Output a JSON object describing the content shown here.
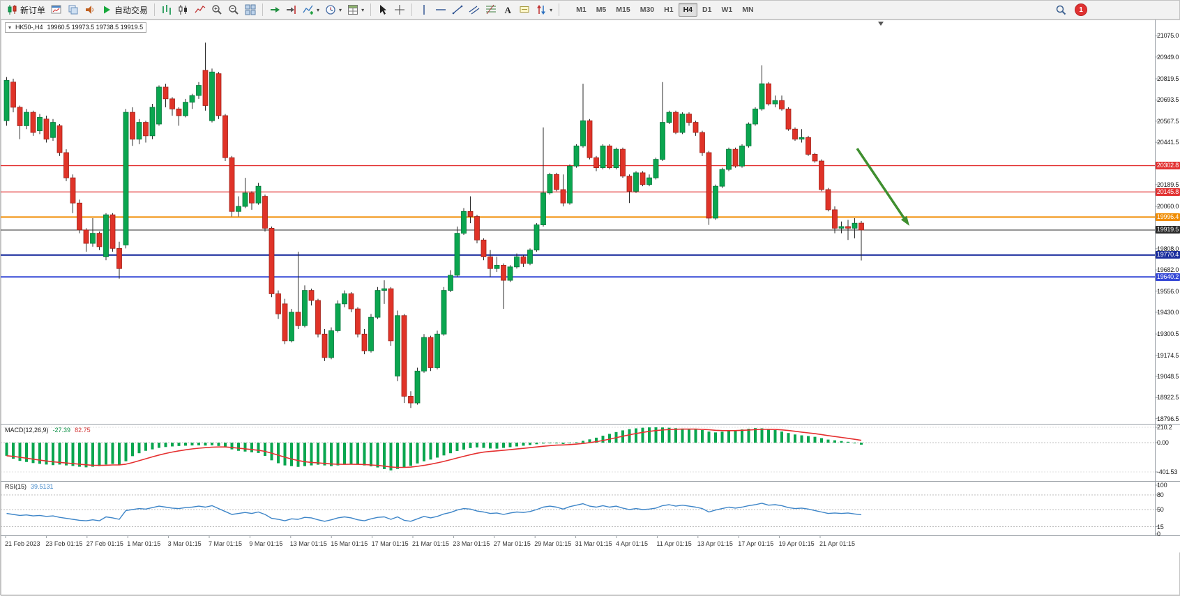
{
  "toolbar": {
    "groups": [
      {
        "name": "orders",
        "items": [
          {
            "name": "new-order-button",
            "icon": "new-order",
            "label": "新订单"
          },
          {
            "name": "new-chart-button",
            "icon": "new-chart"
          },
          {
            "name": "profiles-button",
            "icon": "profiles"
          },
          {
            "name": "alerts-button",
            "icon": "alerts"
          },
          {
            "name": "autotrading-button",
            "icon": "autotrading",
            "label": "自动交易"
          }
        ]
      },
      {
        "name": "chart-type",
        "items": [
          {
            "name": "bar-chart-button",
            "icon": "ohlc-bars"
          },
          {
            "name": "candlestick-chart-button",
            "icon": "candles"
          },
          {
            "name": "line-chart-button",
            "icon": "line-chart"
          },
          {
            "name": "zoom-in-button",
            "icon": "zoom-in"
          },
          {
            "name": "zoom-out-button",
            "icon": "zoom-out"
          },
          {
            "name": "tile-windows-button",
            "icon": "tile-windows"
          }
        ]
      },
      {
        "name": "chart-tools",
        "items": [
          {
            "name": "auto-scroll-button",
            "icon": "auto-scroll"
          },
          {
            "name": "chart-shift-button",
            "icon": "chart-shift"
          },
          {
            "name": "indicators-dropdown",
            "icon": "chart-plus",
            "caret": true
          },
          {
            "name": "periods-dropdown",
            "icon": "clock",
            "caret": true
          },
          {
            "name": "templates-dropdown",
            "icon": "templates",
            "caret": true
          }
        ]
      },
      {
        "name": "cursor-tools",
        "items": [
          {
            "name": "cursor-button",
            "icon": "cursor"
          },
          {
            "name": "crosshair-button",
            "icon": "crosshair"
          }
        ]
      },
      {
        "name": "draw-tools",
        "items": [
          {
            "name": "vertical-line-button",
            "icon": "vertical-line"
          },
          {
            "name": "horizontal-line-button",
            "icon": "horizontal-line"
          },
          {
            "name": "trendline-button",
            "icon": "trendline"
          },
          {
            "name": "channel-button",
            "icon": "channel"
          },
          {
            "name": "fibonacci-button",
            "icon": "fibonacci"
          },
          {
            "name": "text-button",
            "icon": "text"
          },
          {
            "name": "label-button",
            "icon": "label"
          },
          {
            "name": "shapes-dropdown",
            "icon": "shapes",
            "caret": true
          }
        ]
      }
    ],
    "timeframes": [
      {
        "name": "timeframe-m1",
        "label": "M1"
      },
      {
        "name": "timeframe-m5",
        "label": "M5"
      },
      {
        "name": "timeframe-m15",
        "label": "M15"
      },
      {
        "name": "timeframe-m30",
        "label": "M30"
      },
      {
        "name": "timeframe-h1",
        "label": "H1"
      },
      {
        "name": "timeframe-h4",
        "label": "H4",
        "active": true
      },
      {
        "name": "timeframe-d1",
        "label": "D1"
      },
      {
        "name": "timeframe-w1",
        "label": "W1"
      },
      {
        "name": "timeframe-mn",
        "label": "MN"
      }
    ],
    "right": {
      "search": "search",
      "notification_count": "1"
    }
  },
  "chart": {
    "quote": {
      "collapse_icon": "▾",
      "symbol_period": "HK50-,H4",
      "ohlc": "19960.5 19973.5 19738.5 19919.5"
    }
  },
  "chart_data": {
    "type": "candlestick",
    "symbol": "HK50-",
    "timeframe": "H4",
    "colors": {
      "up": "#0aa64f",
      "down": "#e03328",
      "wick": "#2b2b2b",
      "macd_hist": "#0aa64f",
      "macd_signal": "#e53030",
      "rsi": "#3d85c8",
      "arrow": "#3f8f2f"
    },
    "price_axis": {
      "ticks": [
        "21075.0",
        "20949.0",
        "20819.5",
        "20693.5",
        "20567.5",
        "20441.5",
        "20189.5",
        "20060.0",
        "19808.0",
        "19682.0",
        "19556.0",
        "19430.0",
        "19300.5",
        "19174.5",
        "19048.5",
        "18922.5",
        "18796.5"
      ]
    },
    "levels": [
      {
        "value": 20302.8,
        "label": "20302.8",
        "color": "#e23131",
        "line_width": 1.3
      },
      {
        "value": 20145.8,
        "label": "20145.8",
        "color": "#e23131",
        "line_width": 1.3
      },
      {
        "value": 19996.4,
        "label": "19996.4",
        "color": "#f08c00",
        "line_width": 2
      },
      {
        "value": 19919.5,
        "label": "19919.5",
        "color": "#2b2b2b",
        "line_width": 1
      },
      {
        "value": 19770.4,
        "label": "19770.4",
        "color": "#1c2f9e",
        "line_width": 2
      },
      {
        "value": 19640.2,
        "label": "19640.2",
        "color": "#3548d6",
        "line_width": 2
      }
    ],
    "arrow": {
      "from": [
        1228,
        212
      ],
      "to": [
        1303,
        323
      ]
    },
    "candles": [
      [
        20570,
        20830,
        20540,
        20810
      ],
      [
        20800,
        20820,
        20620,
        20650
      ],
      [
        20650,
        20660,
        20460,
        20540
      ],
      [
        20540,
        20640,
        20520,
        20620
      ],
      [
        20620,
        20630,
        20480,
        20500
      ],
      [
        20510,
        20610,
        20490,
        20590
      ],
      [
        20580,
        20600,
        20440,
        20460
      ],
      [
        20470,
        20580,
        20450,
        20560
      ],
      [
        20540,
        20550,
        20360,
        20380
      ],
      [
        20380,
        20400,
        20210,
        20230
      ],
      [
        20230,
        20250,
        20020,
        20080
      ],
      [
        20080,
        20100,
        19900,
        19920
      ],
      [
        19920,
        19930,
        19790,
        19840
      ],
      [
        19840,
        19990,
        19820,
        19900
      ],
      [
        19900,
        19910,
        19800,
        19820
      ],
      [
        19760,
        20020,
        19740,
        20010
      ],
      [
        20010,
        20020,
        19790,
        19810
      ],
      [
        19810,
        19850,
        19630,
        19690
      ],
      [
        19830,
        20640,
        19810,
        20620
      ],
      [
        20620,
        20650,
        20420,
        20460
      ],
      [
        20460,
        20580,
        20430,
        20560
      ],
      [
        20560,
        20570,
        20440,
        20480
      ],
      [
        20480,
        20670,
        20460,
        20650
      ],
      [
        20550,
        20780,
        20540,
        20770
      ],
      [
        20770,
        20790,
        20650,
        20700
      ],
      [
        20700,
        20710,
        20600,
        20640
      ],
      [
        20640,
        20650,
        20540,
        20600
      ],
      [
        20600,
        20700,
        20590,
        20680
      ],
      [
        20680,
        20730,
        20640,
        20720
      ],
      [
        20720,
        20800,
        20700,
        20780
      ],
      [
        20870,
        21035,
        20630,
        20660
      ],
      [
        20570,
        20880,
        20560,
        20860
      ],
      [
        20850,
        20860,
        20580,
        20600
      ],
      [
        20600,
        20610,
        20330,
        20350
      ],
      [
        20350,
        20360,
        20000,
        20030
      ],
      [
        20030,
        20120,
        20000,
        20060
      ],
      [
        20060,
        20230,
        20050,
        20140
      ],
      [
        20140,
        20150,
        20040,
        20080
      ],
      [
        20080,
        20200,
        20070,
        20180
      ],
      [
        20120,
        20130,
        19910,
        19930
      ],
      [
        19930,
        19940,
        19520,
        19540
      ],
      [
        19540,
        19560,
        19390,
        19420
      ],
      [
        19480,
        19510,
        19240,
        19260
      ],
      [
        19260,
        19450,
        19250,
        19430
      ],
      [
        19430,
        19790,
        19330,
        19350
      ],
      [
        19350,
        19590,
        19340,
        19560
      ],
      [
        19560,
        19570,
        19470,
        19500
      ],
      [
        19500,
        19510,
        19280,
        19300
      ],
      [
        19300,
        19330,
        19140,
        19160
      ],
      [
        19160,
        19340,
        19150,
        19320
      ],
      [
        19320,
        19500,
        19310,
        19480
      ],
      [
        19480,
        19560,
        19460,
        19540
      ],
      [
        19540,
        19550,
        19430,
        19450
      ],
      [
        19450,
        19460,
        19280,
        19300
      ],
      [
        19300,
        19330,
        19180,
        19200
      ],
      [
        19200,
        19420,
        19190,
        19400
      ],
      [
        19400,
        19580,
        19390,
        19560
      ],
      [
        19560,
        19620,
        19480,
        19570
      ],
      [
        19570,
        19580,
        19230,
        19260
      ],
      [
        19050,
        19440,
        19020,
        19410
      ],
      [
        19410,
        19420,
        18890,
        18930
      ],
      [
        18930,
        18960,
        18860,
        18890
      ],
      [
        18890,
        19100,
        18880,
        19080
      ],
      [
        19080,
        19300,
        19070,
        19280
      ],
      [
        19280,
        19290,
        19080,
        19100
      ],
      [
        19100,
        19320,
        19090,
        19300
      ],
      [
        19300,
        19580,
        19290,
        19560
      ],
      [
        19560,
        19680,
        19550,
        19650
      ],
      [
        19650,
        19940,
        19640,
        19900
      ],
      [
        19900,
        20050,
        19890,
        20030
      ],
      [
        20030,
        20120,
        19960,
        20000
      ],
      [
        20000,
        20010,
        19840,
        19860
      ],
      [
        19860,
        19870,
        19740,
        19760
      ],
      [
        19760,
        19800,
        19640,
        19690
      ],
      [
        19690,
        19760,
        19670,
        19710
      ],
      [
        19710,
        19720,
        19450,
        19620
      ],
      [
        19620,
        19710,
        19610,
        19700
      ],
      [
        19700,
        19780,
        19690,
        19760
      ],
      [
        19760,
        19770,
        19700,
        19720
      ],
      [
        19720,
        19810,
        19710,
        19800
      ],
      [
        19800,
        19960,
        19790,
        19950
      ],
      [
        19950,
        20530,
        19940,
        20140
      ],
      [
        20140,
        20260,
        20130,
        20250
      ],
      [
        20250,
        20260,
        20150,
        20160
      ],
      [
        20160,
        20250,
        20060,
        20080
      ],
      [
        20080,
        20310,
        20070,
        20300
      ],
      [
        20300,
        20430,
        20290,
        20420
      ],
      [
        20420,
        20790,
        20410,
        20570
      ],
      [
        20570,
        20580,
        20340,
        20350
      ],
      [
        20350,
        20360,
        20270,
        20290
      ],
      [
        20290,
        20430,
        20280,
        20420
      ],
      [
        20420,
        20430,
        20280,
        20290
      ],
      [
        20290,
        20410,
        20280,
        20400
      ],
      [
        20400,
        20410,
        20230,
        20240
      ],
      [
        20240,
        20250,
        20080,
        20150
      ],
      [
        20150,
        20270,
        20140,
        20260
      ],
      [
        20260,
        20270,
        20180,
        20190
      ],
      [
        20190,
        20250,
        20180,
        20230
      ],
      [
        20230,
        20350,
        20220,
        20340
      ],
      [
        20340,
        20800,
        20330,
        20560
      ],
      [
        20560,
        20630,
        20550,
        20620
      ],
      [
        20620,
        20630,
        20490,
        20500
      ],
      [
        20500,
        20620,
        20490,
        20610
      ],
      [
        20610,
        20620,
        20540,
        20560
      ],
      [
        20560,
        20570,
        20480,
        20500
      ],
      [
        20500,
        20510,
        20360,
        20380
      ],
      [
        20380,
        20390,
        19950,
        19990
      ],
      [
        19990,
        20190,
        19980,
        20180
      ],
      [
        20180,
        20290,
        20170,
        20280
      ],
      [
        20280,
        20410,
        20270,
        20400
      ],
      [
        20400,
        20410,
        20290,
        20300
      ],
      [
        20300,
        20430,
        20290,
        20420
      ],
      [
        20420,
        20560,
        20410,
        20550
      ],
      [
        20550,
        20650,
        20540,
        20640
      ],
      [
        20640,
        20900,
        20630,
        20790
      ],
      [
        20790,
        20800,
        20660,
        20670
      ],
      [
        20670,
        20720,
        20650,
        20690
      ],
      [
        20690,
        20720,
        20630,
        20640
      ],
      [
        20640,
        20650,
        20510,
        20520
      ],
      [
        20520,
        20530,
        20450,
        20460
      ],
      [
        20460,
        20520,
        20440,
        20470
      ],
      [
        20470,
        20480,
        20360,
        20370
      ],
      [
        20370,
        20380,
        20320,
        20330
      ],
      [
        20330,
        20340,
        20150,
        20160
      ],
      [
        20160,
        20170,
        20030,
        20040
      ],
      [
        20040,
        20060,
        19900,
        19930
      ],
      [
        19930,
        19970,
        19900,
        19940
      ],
      [
        19940,
        19980,
        19860,
        19930
      ],
      [
        19930,
        19990,
        19870,
        19960
      ],
      [
        19960.5,
        19973.5,
        19738.5,
        19919.5
      ]
    ],
    "macd": {
      "label": "MACD(12,26,9)",
      "main_value": "-27.39",
      "signal_value": "82.75",
      "axis": [
        210.2,
        0,
        -401.53
      ],
      "axis_labels": [
        "210.2",
        "0.00",
        "-401.53"
      ],
      "histogram": [
        -180,
        -220,
        -250,
        -265,
        -280,
        -290,
        -300,
        -308,
        -300,
        -312,
        -320,
        -330,
        -338,
        -330,
        -322,
        -300,
        -292,
        -302,
        -255,
        -185,
        -145,
        -112,
        -92,
        -72,
        -60,
        -52,
        -46,
        -42,
        -38,
        -36,
        -40,
        -36,
        -46,
        -62,
        -92,
        -112,
        -122,
        -132,
        -142,
        -182,
        -242,
        -282,
        -312,
        -322,
        -332,
        -322,
        -312,
        -302,
        -312,
        -322,
        -312,
        -302,
        -292,
        -302,
        -312,
        -325,
        -340,
        -362,
        -380,
        -360,
        -340,
        -318,
        -285,
        -255,
        -232,
        -205,
        -175,
        -145,
        -115,
        -95,
        -75,
        -65,
        -72,
        -80,
        -82,
        -72,
        -62,
        -52,
        -42,
        -32,
        -22,
        -12,
        -4,
        -10,
        -18,
        -8,
        6,
        25,
        45,
        68,
        95,
        120,
        145,
        168,
        185,
        196,
        204,
        209,
        210,
        208,
        204,
        198,
        192,
        187,
        182,
        172,
        152,
        140,
        150,
        160,
        171,
        181,
        191,
        199,
        196,
        186,
        172,
        152,
        132,
        112,
        100,
        90,
        80,
        62,
        42,
        32,
        22,
        12,
        -10,
        -27.39
      ]
    },
    "rsi": {
      "label": "RSI(15)",
      "value": "39.5131",
      "axis": [
        100,
        80,
        50,
        15,
        0
      ],
      "axis_labels": [
        "100",
        "80",
        "50",
        "15",
        "0"
      ],
      "levels": [
        80,
        50,
        15
      ],
      "values": [
        42,
        40,
        38,
        39,
        37,
        38,
        36,
        37,
        34,
        32,
        30,
        28,
        27,
        29,
        27,
        35,
        33,
        30,
        48,
        50,
        52,
        51,
        54,
        57,
        55,
        53,
        52,
        54,
        55,
        57,
        55,
        58,
        52,
        46,
        40,
        42,
        44,
        42,
        45,
        40,
        32,
        30,
        27,
        31,
        30,
        34,
        33,
        29,
        26,
        29,
        33,
        35,
        33,
        29,
        27,
        31,
        34,
        35,
        30,
        35,
        28,
        26,
        31,
        36,
        33,
        36,
        41,
        44,
        49,
        52,
        51,
        47,
        45,
        42,
        43,
        40,
        43,
        45,
        44,
        46,
        50,
        55,
        57,
        55,
        51,
        56,
        59,
        62,
        57,
        55,
        58,
        55,
        57,
        53,
        50,
        52,
        50,
        51,
        53,
        58,
        60,
        57,
        59,
        57,
        55,
        52,
        45,
        49,
        52,
        55,
        53,
        55,
        58,
        60,
        63,
        59,
        60,
        58,
        54,
        52,
        53,
        51,
        48,
        45,
        42,
        43,
        42,
        43,
        41,
        39.5
      ]
    },
    "dates": [
      "21 Feb 2023",
      "23 Feb 01:15",
      "27 Feb 01:15",
      "1 Mar 01:15",
      "3 Mar 01:15",
      "7 Mar 01:15",
      "9 Mar 01:15",
      "13 Mar 01:15",
      "15 Mar 01:15",
      "17 Mar 01:15",
      "21 Mar 01:15",
      "23 Mar 01:15",
      "27 Mar 01:15",
      "29 Mar 01:15",
      "31 Mar 01:15",
      "4 Apr 01:15",
      "11 Apr 01:15",
      "13 Apr 01:15",
      "17 Apr 01:15",
      "19 Apr 01:15",
      "21 Apr 01:15"
    ]
  }
}
